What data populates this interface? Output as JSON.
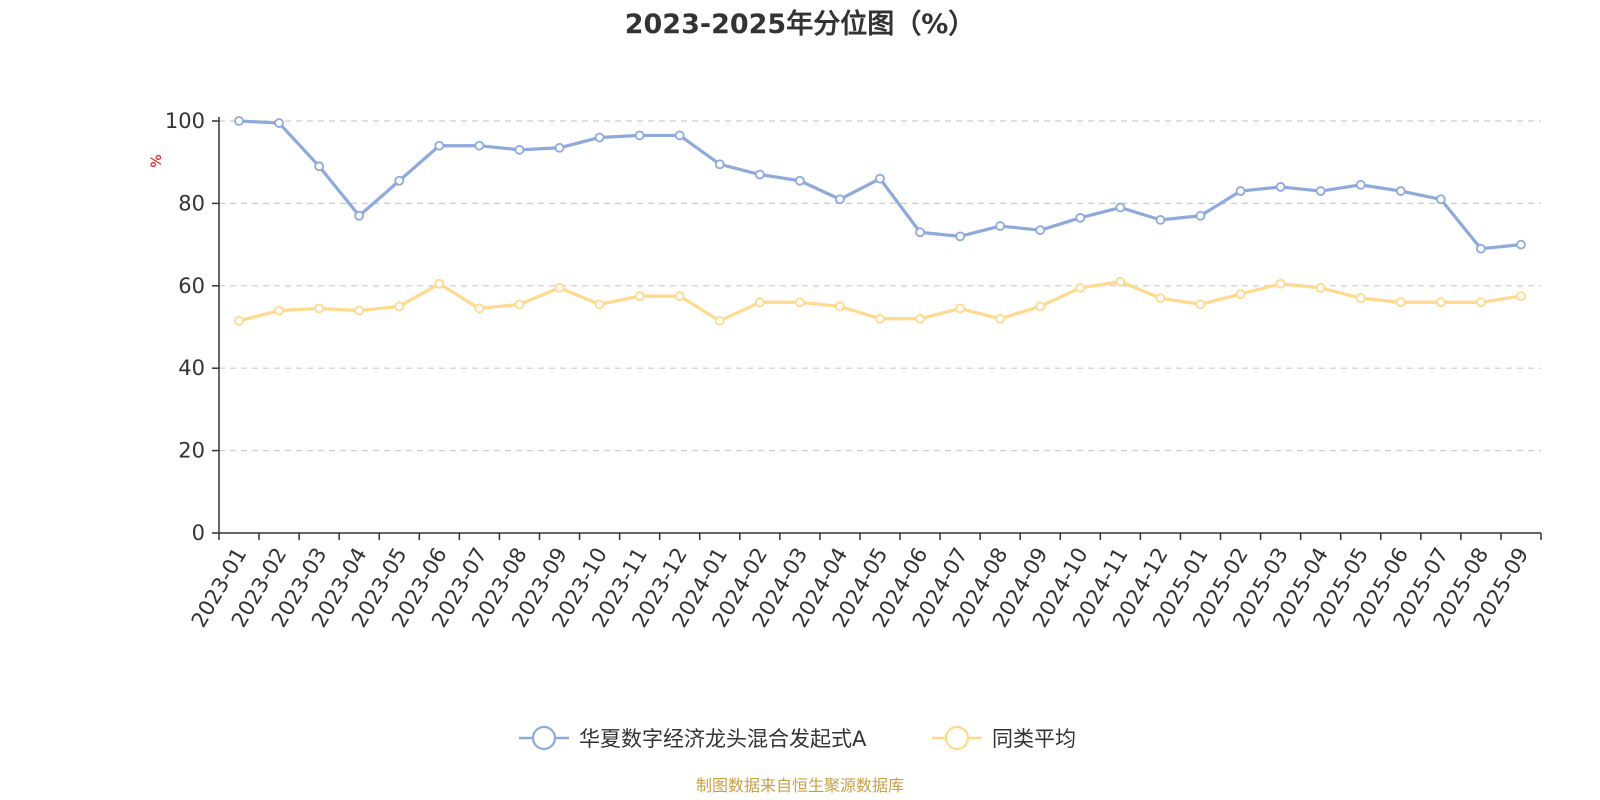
{
  "chart_data": {
    "type": "line",
    "title": "2023-2025年分位图（%）",
    "ylabel": "%",
    "xlabel": "",
    "ylim": [
      0,
      100
    ],
    "yticks": [
      0,
      20,
      40,
      60,
      80,
      100
    ],
    "grid": true,
    "legend_position": "bottom",
    "x": [
      "2023-01",
      "2023-02",
      "2023-03",
      "2023-04",
      "2023-05",
      "2023-06",
      "2023-07",
      "2023-08",
      "2023-09",
      "2023-10",
      "2023-11",
      "2023-12",
      "2024-01",
      "2024-02",
      "2024-03",
      "2024-04",
      "2024-05",
      "2024-06",
      "2024-07",
      "2024-08",
      "2024-09",
      "2024-10",
      "2024-11",
      "2024-12",
      "2025-01",
      "2025-02",
      "2025-03",
      "2025-04",
      "2025-05",
      "2025-06",
      "2025-07",
      "2025-08",
      "2025-09"
    ],
    "series": [
      {
        "name": "华夏数字经济龙头混合发起式A",
        "color": "#8eaadb",
        "values": [
          100,
          99.5,
          89,
          77,
          85.5,
          94,
          94,
          93,
          93.5,
          96,
          96.5,
          96.5,
          89.5,
          87,
          85.5,
          81,
          86,
          73,
          72,
          74.5,
          73.5,
          76.5,
          79,
          76,
          77,
          83,
          84,
          83,
          84.5,
          83,
          81,
          69,
          70
        ]
      },
      {
        "name": "同类平均",
        "color": "#ffd98e",
        "values": [
          51.5,
          54,
          54.5,
          54,
          55,
          60.5,
          54.5,
          55.5,
          59.5,
          55.5,
          57.5,
          57.5,
          51.5,
          56,
          56,
          55,
          52,
          52,
          54.5,
          52,
          55,
          59.5,
          61,
          57,
          55.5,
          58,
          60.5,
          59.5,
          57,
          56,
          56,
          56,
          57.5
        ]
      }
    ]
  },
  "source_text": "制图数据来自恒生聚源数据库",
  "source_color": "#c8a046",
  "axis_color": "#333333",
  "grid_color": "#cccccc"
}
